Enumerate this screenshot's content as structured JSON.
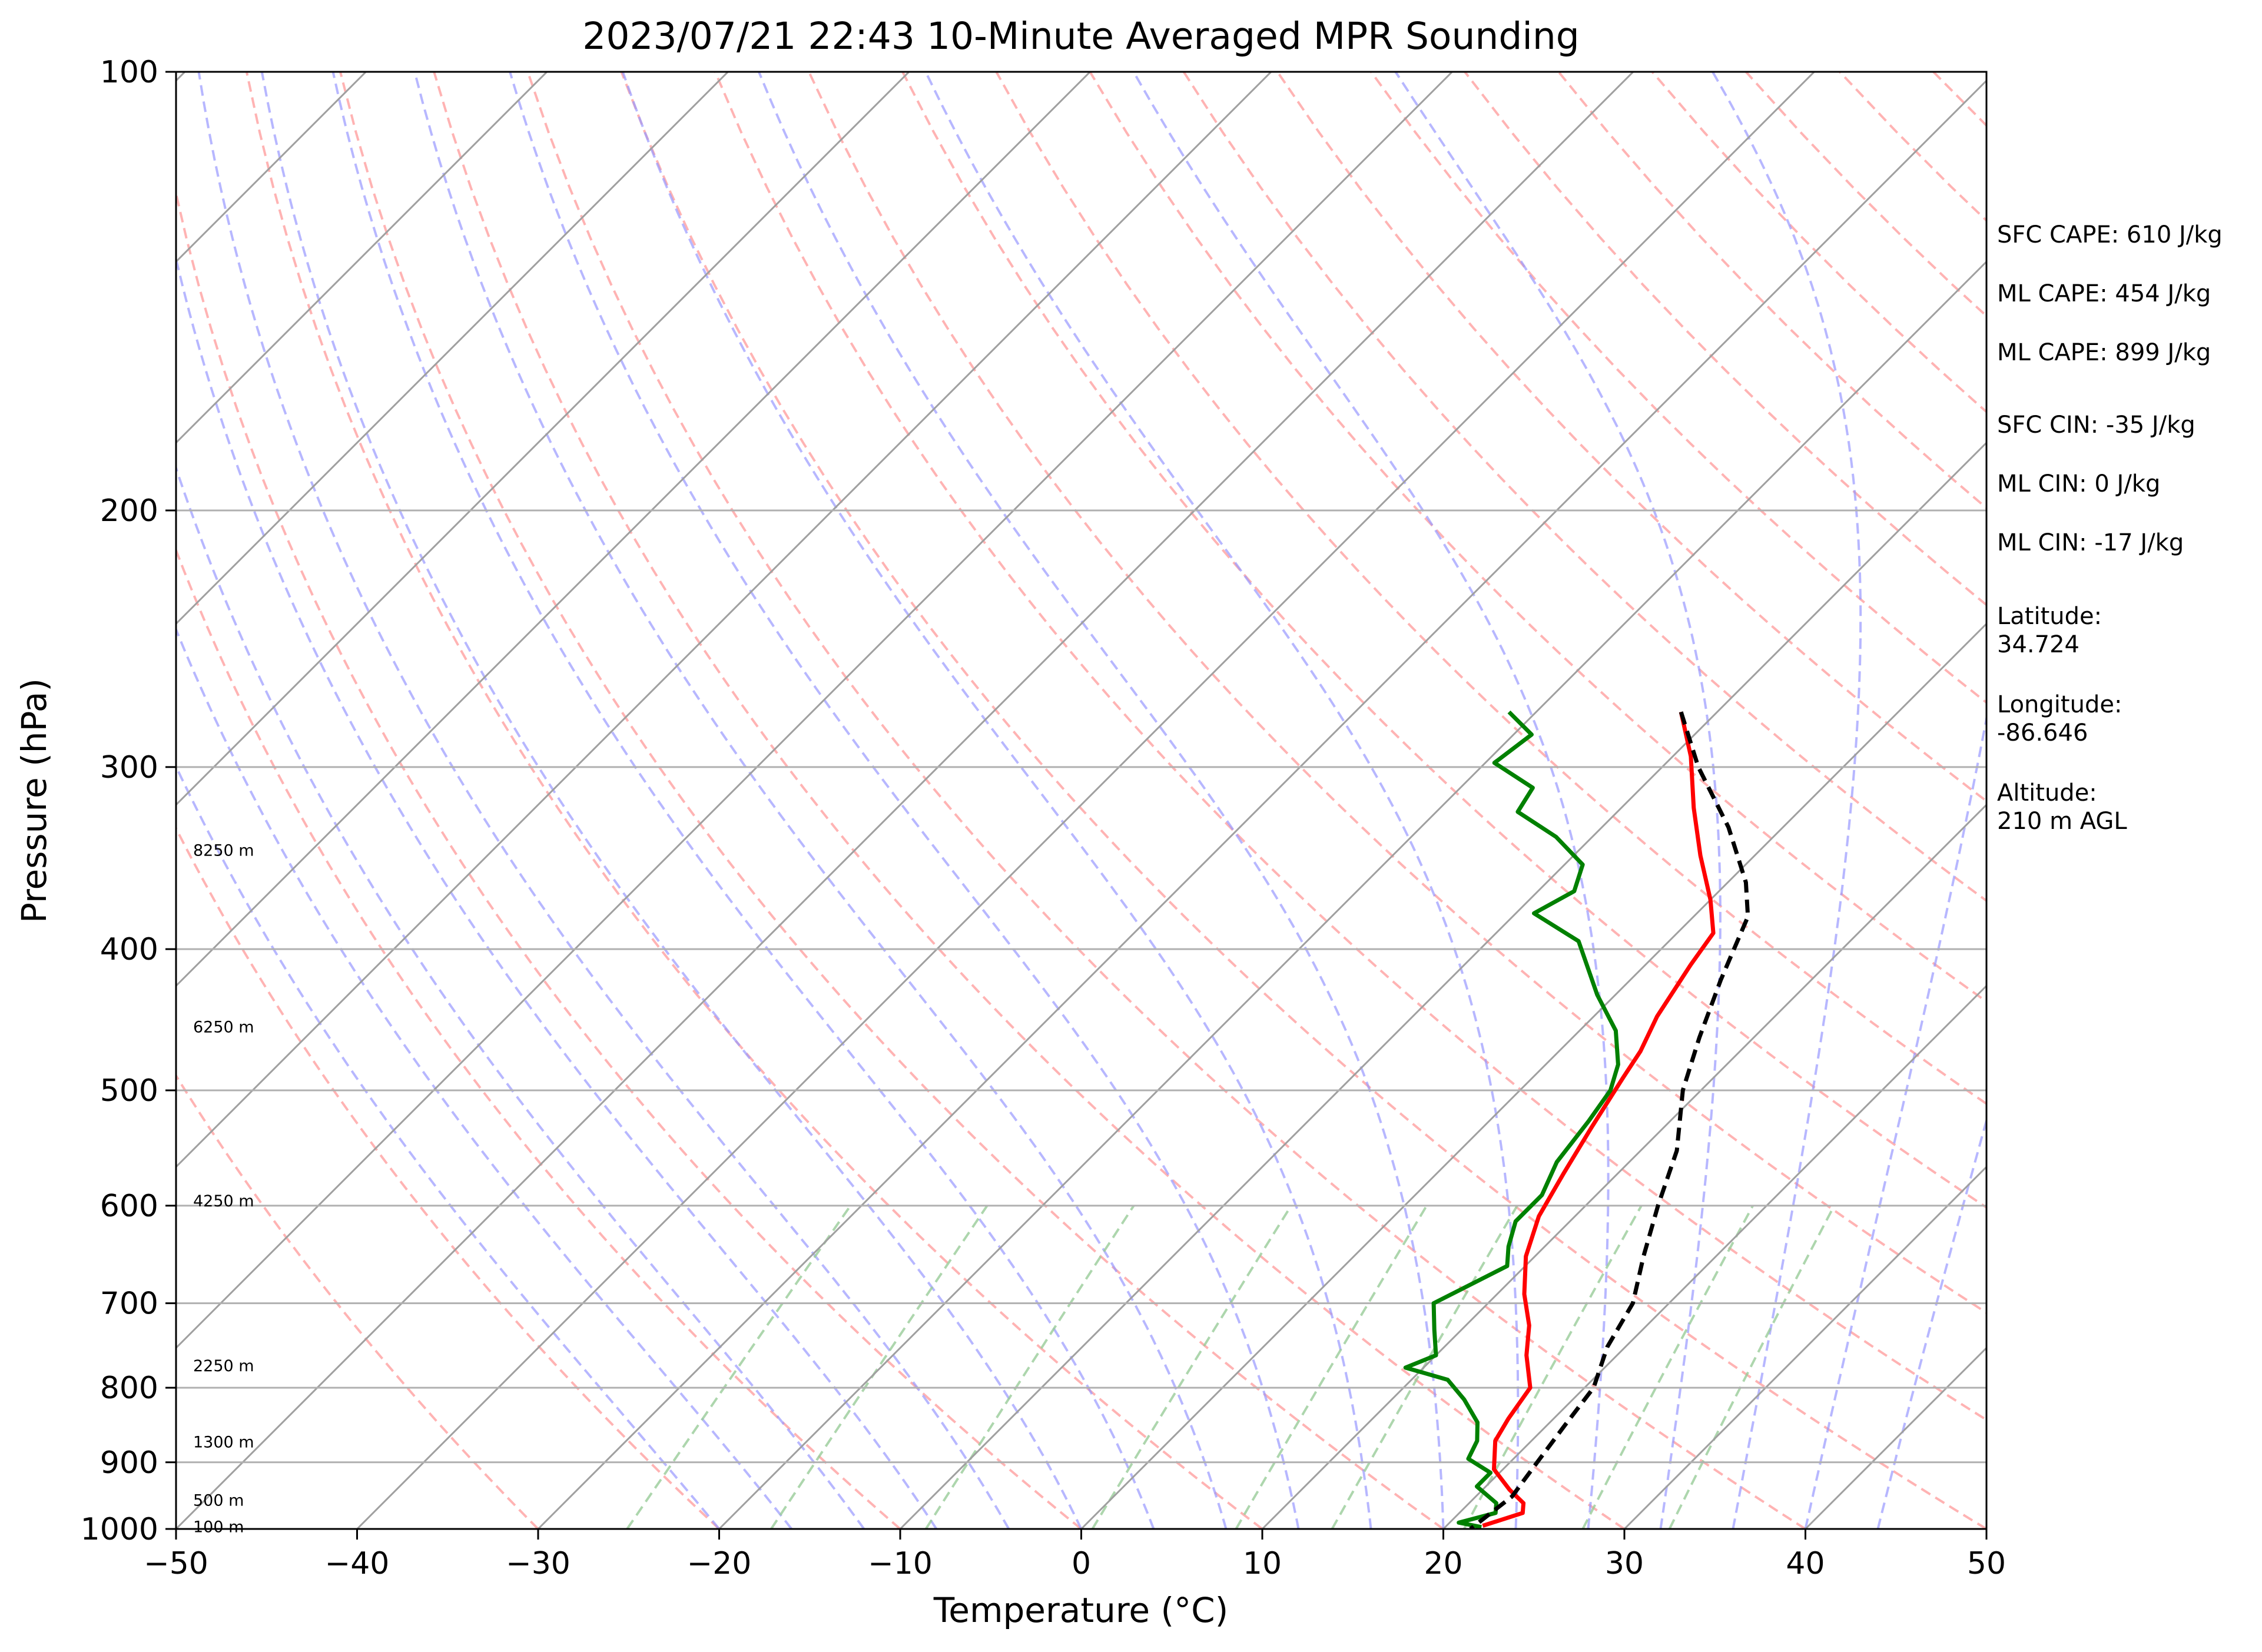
{
  "chart_data": {
    "type": "line",
    "title": "2023/07/21 22:43 10-Minute Averaged MPR Sounding",
    "xlabel": "Temperature (°C)",
    "ylabel": "Pressure (hPa)",
    "xlim": [
      -50,
      50
    ],
    "ylim": [
      1000,
      100
    ],
    "y_scale": "log",
    "grid": true,
    "x_ticks": [
      "−50",
      "−40",
      "−30",
      "−20",
      "−10",
      "0",
      "10",
      "20",
      "30",
      "40",
      "50"
    ],
    "y_ticks": [
      "100",
      "200",
      "300",
      "400",
      "500",
      "600",
      "700",
      "800",
      "900",
      "1000"
    ],
    "skew_degrees": 45,
    "series": [
      {
        "color": "#ff0000",
        "style": "solid",
        "points": [
          [
            -12,
            275
          ],
          [
            -9,
            295
          ],
          [
            -6,
            320
          ],
          [
            -3,
            345
          ],
          [
            0,
            370
          ],
          [
            2,
            390
          ],
          [
            2.5,
            410
          ],
          [
            3.5,
            445
          ],
          [
            4.5,
            470
          ],
          [
            5,
            490
          ],
          [
            6,
            530
          ],
          [
            7,
            570
          ],
          [
            8,
            610
          ],
          [
            9.5,
            650
          ],
          [
            11.5,
            690
          ],
          [
            13.5,
            725
          ],
          [
            15,
            760
          ],
          [
            17,
            800
          ],
          [
            17.5,
            840
          ],
          [
            18,
            870
          ],
          [
            19.5,
            910
          ],
          [
            21.5,
            940
          ],
          [
            23,
            960
          ],
          [
            23.5,
            975
          ],
          [
            22,
            995
          ]
        ]
      },
      {
        "color": "#008000",
        "style": "solid",
        "points": [
          [
            -21.5,
            275
          ],
          [
            -19,
            285
          ],
          [
            -19.5,
            298
          ],
          [
            -16,
            310
          ],
          [
            -15.5,
            322
          ],
          [
            -12,
            335
          ],
          [
            -9,
            350
          ],
          [
            -8,
            365
          ],
          [
            -9,
            378
          ],
          [
            -5,
            395
          ],
          [
            -1,
            430
          ],
          [
            2,
            455
          ],
          [
            4,
            480
          ],
          [
            5,
            500
          ],
          [
            5.5,
            525
          ],
          [
            6,
            560
          ],
          [
            7,
            590
          ],
          [
            7,
            615
          ],
          [
            8,
            640
          ],
          [
            9,
            660
          ],
          [
            7,
            700
          ],
          [
            8.5,
            730
          ],
          [
            10,
            760
          ],
          [
            9,
            775
          ],
          [
            12,
            790
          ],
          [
            14,
            815
          ],
          [
            16,
            845
          ],
          [
            17,
            870
          ],
          [
            17.5,
            895
          ],
          [
            19.5,
            915
          ],
          [
            19.5,
            935
          ],
          [
            21.5,
            960
          ],
          [
            22,
            975
          ],
          [
            20.5,
            990
          ],
          [
            22,
            997
          ]
        ]
      },
      {
        "color": "#000000",
        "style": "dashed",
        "points": [
          [
            -12,
            275
          ],
          [
            -8,
            300
          ],
          [
            -3,
            330
          ],
          [
            1,
            360
          ],
          [
            3,
            380
          ],
          [
            5,
            420
          ],
          [
            7,
            460
          ],
          [
            9,
            500
          ],
          [
            12,
            550
          ],
          [
            14,
            600
          ],
          [
            16,
            650
          ],
          [
            18,
            700
          ],
          [
            19,
            750
          ],
          [
            20.5,
            800
          ],
          [
            21,
            850
          ],
          [
            21.5,
            900
          ],
          [
            22,
            950
          ],
          [
            21.5,
            1000
          ]
        ]
      }
    ],
    "height_labels": [
      {
        "p": 342,
        "text": "8250 m"
      },
      {
        "p": 452,
        "text": "6250 m"
      },
      {
        "p": 595,
        "text": "4250 m"
      },
      {
        "p": 772,
        "text": "2250 m"
      },
      {
        "p": 871,
        "text": "1300 m"
      },
      {
        "p": 955,
        "text": "500 m"
      },
      {
        "p": 996,
        "text": "100 m"
      }
    ],
    "reference_lines": {
      "isotherm_color": "#a0a0a0",
      "dry_adiabat_color": "#ff9999",
      "moist_adiabat_color": "#9999ff",
      "mixing_ratio_color": "#99cc99"
    }
  },
  "side_panel": {
    "lines": [
      "SFC CAPE: 610 J/kg",
      "ML CAPE: 454 J/kg",
      "ML CAPE: 899 J/kg",
      "SFC CIN: -35 J/kg",
      "ML CIN: 0 J/kg",
      "ML CIN: -17 J/kg",
      "Latitude:",
      "34.724",
      "Longitude:",
      "-86.646",
      "Altitude:",
      "210 m AGL"
    ]
  }
}
